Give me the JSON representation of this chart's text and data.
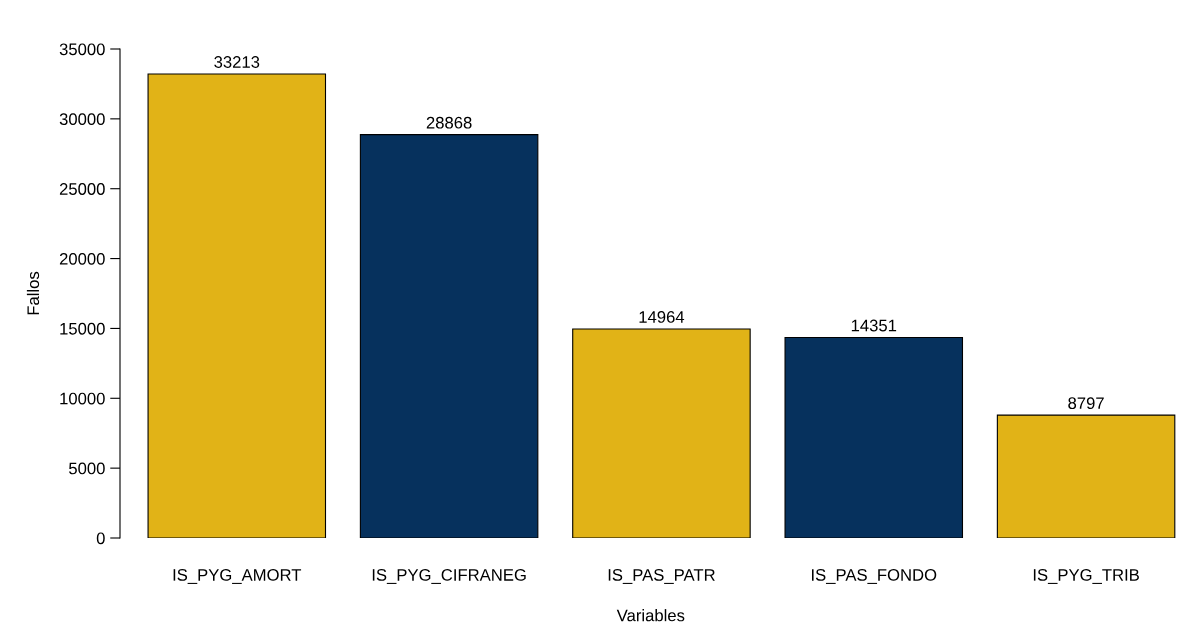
{
  "chart_data": {
    "type": "bar",
    "xlabel": "Variables",
    "ylabel": "Fallos",
    "categories": [
      "IS_PYG_AMORT",
      "IS_PYG_CIFRANEG",
      "IS_PAS_PATR",
      "IS_PAS_FONDO",
      "IS_PYG_TRIB"
    ],
    "values": [
      33213,
      28868,
      14964,
      14351,
      8797
    ],
    "colors": [
      "#e1b317",
      "#06315d",
      "#e1b317",
      "#06315d",
      "#e1b317"
    ],
    "ylim": [
      0,
      35000
    ],
    "yticks": [
      0,
      5000,
      10000,
      15000,
      20000,
      25000,
      30000,
      35000
    ],
    "data_labels": true,
    "grid": false,
    "legend": false
  }
}
